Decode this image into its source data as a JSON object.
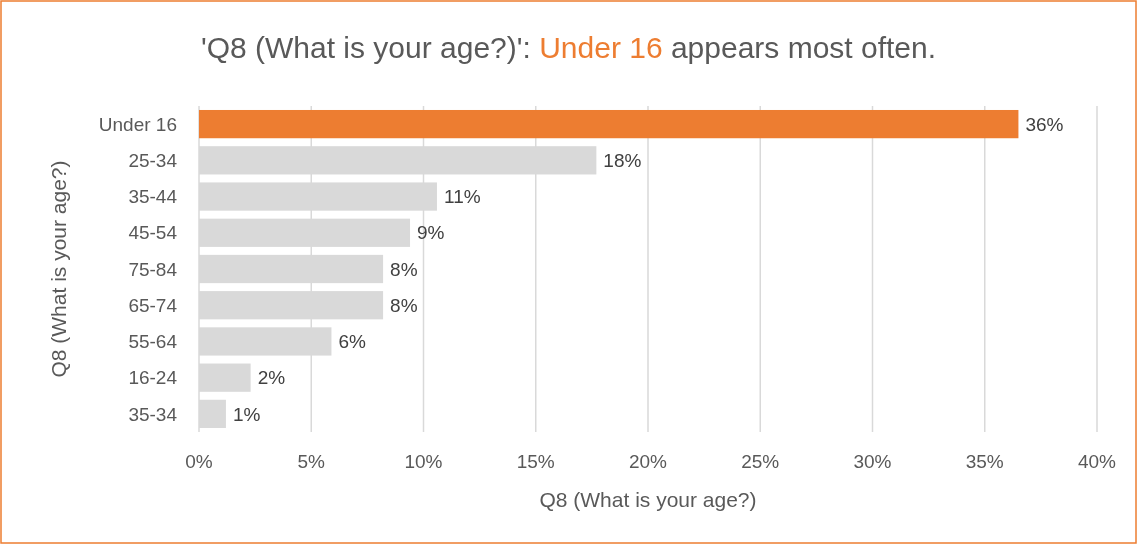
{
  "chart_data": {
    "type": "bar",
    "orientation": "horizontal",
    "title": "'Q8 (What is your age?)': Under 16 appears most often.",
    "xlabel": "Q8 (What is your age?)",
    "ylabel": "Q8 (What is your age?)",
    "categories": [
      "Under 16",
      "25-34",
      "35-44",
      "45-54",
      "75-84",
      "65-74",
      "55-64",
      "16-24",
      "35-34"
    ],
    "values": [
      36.5,
      17.7,
      10.6,
      9.4,
      8.2,
      8.2,
      5.9,
      2.3,
      1.2
    ],
    "value_labels": [
      "36%",
      "18%",
      "11%",
      "9%",
      "8%",
      "8%",
      "6%",
      "2%",
      "1%"
    ],
    "colors": [
      "#ed7d31",
      "#d9d9d9",
      "#d9d9d9",
      "#d9d9d9",
      "#d9d9d9",
      "#d9d9d9",
      "#d9d9d9",
      "#d9d9d9",
      "#d9d9d9"
    ],
    "xlim": [
      0,
      40
    ],
    "xticks": [
      {
        "value": 0,
        "label": "0%"
      },
      {
        "value": 5,
        "label": "5%"
      },
      {
        "value": 10,
        "label": "10%"
      },
      {
        "value": 15,
        "label": "15%"
      },
      {
        "value": 20,
        "label": "20%"
      },
      {
        "value": 25,
        "label": "25%"
      },
      {
        "value": 30,
        "label": "30%"
      },
      {
        "value": 35,
        "label": "35%"
      },
      {
        "value": 40,
        "label": "40%"
      }
    ],
    "grid": "x"
  }
}
